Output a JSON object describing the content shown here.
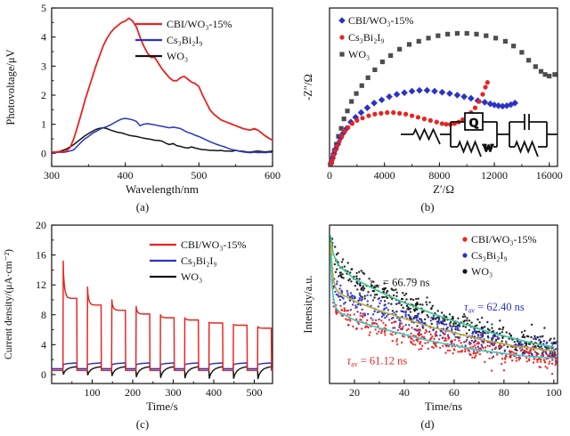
{
  "figure": {
    "background": "#ffffff"
  },
  "chart_data": [
    {
      "id": "a",
      "caption": "(a)",
      "type": "line",
      "xlabel": "Wavelength/nm",
      "ylabel": "Photovoltage/μV",
      "xlim": [
        300,
        600
      ],
      "ylim": [
        -0.45,
        5
      ],
      "xticks": [
        300,
        400,
        500,
        600
      ],
      "xminor": [
        350,
        450,
        550
      ],
      "yticks": [
        0,
        1,
        2,
        3,
        4,
        5
      ],
      "yminor": [
        0.5,
        1.5,
        2.5,
        3.5,
        4.5
      ],
      "legend": [
        {
          "label": "CBI/WO₃-15%",
          "color": "#e8231f"
        },
        {
          "label": "Cs₃Bi₂I₉",
          "color": "#2b33c4"
        },
        {
          "label": "WO₃",
          "color": "#151515"
        }
      ],
      "series": [
        {
          "name": "CBI/WO₃-15%",
          "color": "#e8231f",
          "width": 1.8,
          "x0": 300,
          "dx": 5,
          "y": [
            0.05,
            0.04,
            0.06,
            0.05,
            0.08,
            0.2,
            0.5,
            0.9,
            1.35,
            1.8,
            2.2,
            2.6,
            3.0,
            3.35,
            3.7,
            3.95,
            4.15,
            4.3,
            4.4,
            4.5,
            4.55,
            4.65,
            4.55,
            4.35,
            4.0,
            3.7,
            3.45,
            3.3,
            3.3,
            3.1,
            2.9,
            2.75,
            2.6,
            2.5,
            2.5,
            2.6,
            2.65,
            2.55,
            2.45,
            2.4,
            2.3,
            2.0,
            1.75,
            1.5,
            1.35,
            1.25,
            1.15,
            1.1,
            1.05,
            1.0,
            0.95,
            0.9,
            0.85,
            0.82,
            0.8,
            0.85,
            0.8,
            0.7,
            0.6,
            0.52,
            0.45
          ]
        },
        {
          "name": "Cs₃Bi₂I₉",
          "color": "#2b33c4",
          "width": 1.5,
          "x0": 300,
          "dx": 5,
          "y": [
            0.03,
            0.02,
            0.04,
            0.03,
            0.05,
            0.08,
            0.12,
            0.25,
            0.38,
            0.5,
            0.58,
            0.68,
            0.75,
            0.82,
            0.88,
            0.92,
            0.98,
            1.05,
            1.12,
            1.18,
            1.2,
            1.18,
            1.15,
            1.1,
            0.95,
            1.0,
            1.02,
            1.0,
            0.98,
            0.95,
            0.93,
            0.9,
            0.88,
            0.9,
            0.88,
            0.85,
            0.78,
            0.72,
            0.68,
            0.62,
            0.58,
            0.52,
            0.46,
            0.4,
            0.35,
            0.3,
            0.26,
            0.22,
            0.17,
            0.13,
            0.1,
            0.07,
            0.05,
            0.03,
            0.02,
            0.04,
            0.02,
            0.03,
            0.02,
            0.04,
            0.03
          ]
        },
        {
          "name": "WO₃",
          "color": "#151515",
          "width": 1.5,
          "x0": 300,
          "dx": 5,
          "y": [
            0.02,
            0.04,
            0.06,
            0.1,
            0.15,
            0.22,
            0.3,
            0.4,
            0.5,
            0.6,
            0.68,
            0.75,
            0.82,
            0.86,
            0.88,
            0.85,
            0.8,
            0.76,
            0.72,
            0.7,
            0.66,
            0.62,
            0.6,
            0.58,
            0.55,
            0.52,
            0.5,
            0.48,
            0.45,
            0.44,
            0.42,
            0.35,
            0.3,
            0.34,
            0.26,
            0.24,
            0.2,
            0.18,
            0.22,
            0.18,
            0.15,
            0.13,
            0.12,
            0.1,
            0.1,
            0.09,
            0.1,
            0.08,
            0.08,
            0.07,
            0.1,
            0.08,
            0.07,
            0.05,
            0.04,
            0.06,
            0.08,
            0.06,
            0.05,
            0.06,
            0.08
          ]
        }
      ]
    },
    {
      "id": "b",
      "caption": "(b)",
      "type": "scatter",
      "xlabel": "Z′/Ω",
      "ylabel": "-Z″/Ω",
      "xlim": [
        0,
        16600
      ],
      "ylim": [
        0,
        1
      ],
      "xticks": [
        0,
        4000,
        8000,
        12000,
        16000
      ],
      "xminor": [
        2000,
        6000,
        10000,
        14000
      ],
      "yticks": [],
      "yminor": [],
      "legend": [
        {
          "label": "CBI/WO₃-15%",
          "color": "#2b33c4",
          "marker": "diamond"
        },
        {
          "label": "Cs₃Bi₂I₉",
          "color": "#e8231f",
          "marker": "circle"
        },
        {
          "label": "WO₃",
          "color": "#4d4d4d",
          "marker": "square"
        }
      ],
      "inset": {
        "q_label": "Q",
        "w_label": "W"
      },
      "series": [
        {
          "name": "WO₃",
          "color": "#4d4d4d",
          "marker": "square",
          "x": [
            60,
            100,
            150,
            250,
            350,
            500,
            650,
            850,
            1050,
            1300,
            1600,
            1950,
            2350,
            2800,
            3300,
            3850,
            4450,
            5100,
            5800,
            6500,
            7200,
            7900,
            8600,
            9300,
            10000,
            10700,
            11400,
            12100,
            12800,
            13400,
            14000,
            14500,
            15000,
            15400,
            15700,
            16000,
            16400
          ],
          "y": [
            0.01,
            0.02,
            0.03,
            0.06,
            0.1,
            0.14,
            0.19,
            0.24,
            0.3,
            0.35,
            0.41,
            0.46,
            0.51,
            0.56,
            0.61,
            0.66,
            0.7,
            0.74,
            0.77,
            0.79,
            0.81,
            0.825,
            0.835,
            0.84,
            0.84,
            0.835,
            0.825,
            0.81,
            0.79,
            0.76,
            0.72,
            0.67,
            0.63,
            0.6,
            0.58,
            0.57,
            0.58
          ]
        },
        {
          "name": "CBI/WO₃-15%",
          "color": "#2b33c4",
          "marker": "diamond",
          "x": [
            100,
            200,
            320,
            450,
            600,
            800,
            1000,
            1250,
            1550,
            1900,
            2300,
            2750,
            3250,
            3800,
            4350,
            4900,
            5450,
            6000,
            6550,
            7100,
            7650,
            8200,
            8750,
            9300,
            9800,
            10300,
            10800,
            11300,
            11700,
            12000,
            12300,
            12600,
            12900,
            13200,
            13500
          ],
          "y": [
            0.02,
            0.05,
            0.08,
            0.11,
            0.14,
            0.18,
            0.21,
            0.24,
            0.28,
            0.31,
            0.34,
            0.37,
            0.4,
            0.42,
            0.44,
            0.455,
            0.465,
            0.475,
            0.48,
            0.48,
            0.475,
            0.468,
            0.46,
            0.45,
            0.44,
            0.43,
            0.415,
            0.405,
            0.395,
            0.388,
            0.383,
            0.38,
            0.383,
            0.39,
            0.4
          ]
        },
        {
          "name": "Cs₃Bi₂I₉",
          "color": "#e8231f",
          "marker": "circle",
          "x": [
            100,
            200,
            300,
            420,
            560,
            720,
            900,
            1100,
            1350,
            1650,
            2000,
            2400,
            2850,
            3300,
            3750,
            4200,
            4650,
            5100,
            5550,
            6000,
            6450,
            6900,
            7350,
            7800,
            8200,
            8500,
            8800,
            9100,
            9400,
            9700,
            10000,
            10300,
            10600,
            10900,
            11150,
            11350,
            11500
          ],
          "y": [
            0.02,
            0.04,
            0.07,
            0.1,
            0.13,
            0.16,
            0.19,
            0.22,
            0.245,
            0.27,
            0.29,
            0.305,
            0.32,
            0.33,
            0.335,
            0.34,
            0.34,
            0.335,
            0.33,
            0.32,
            0.31,
            0.3,
            0.29,
            0.28,
            0.27,
            0.266,
            0.265,
            0.27,
            0.28,
            0.295,
            0.315,
            0.34,
            0.37,
            0.41,
            0.455,
            0.5,
            0.53
          ]
        }
      ]
    },
    {
      "id": "c",
      "caption": "(c)",
      "type": "pulses",
      "xlabel": "Time/s",
      "ylabel": "Current density/(μA·cm⁻²)",
      "xlim": [
        0,
        545
      ],
      "ylim": [
        -1.2,
        20
      ],
      "xticks": [
        100,
        200,
        300,
        400,
        500
      ],
      "xminor": [
        50,
        150,
        250,
        350,
        450
      ],
      "yticks": [
        0,
        4,
        8,
        12,
        16,
        20
      ],
      "yminor": [
        2,
        6,
        10,
        14,
        18
      ],
      "legend": [
        {
          "label": "CBI/WO₃-15%",
          "color": "#e8231f"
        },
        {
          "label": "Cs₃Bi₂I₉",
          "color": "#2b33c4"
        },
        {
          "label": "WO₃",
          "color": "#151515"
        }
      ],
      "pulse_timing": {
        "starts": [
          28,
          88,
          148,
          208,
          268,
          328,
          388,
          448,
          508
        ],
        "duration": 34
      },
      "series": [
        {
          "name": "CBI/WO₃-15%",
          "color": "#e8231f",
          "kind": "spike",
          "base": 0.55,
          "peaks": [
            15.2,
            11.7,
            10.0,
            9.1,
            8.0,
            7.6,
            7.0,
            6.7,
            6.4
          ],
          "plateaus": [
            10.2,
            9.3,
            8.6,
            8.1,
            7.6,
            7.3,
            6.9,
            6.6,
            6.2
          ]
        },
        {
          "name": "Cs₃Bi₂I₉",
          "color": "#2b33c4",
          "kind": "step",
          "base": 0.78,
          "on_start": 1.35,
          "on_end": 1.55
        },
        {
          "name": "WO₃",
          "color": "#151515",
          "kind": "rise",
          "base": 0.55,
          "peak": 1.05,
          "dips": [
            0.05,
            -0.05,
            -0.15,
            -0.3,
            -0.4,
            -0.45,
            -0.5,
            -0.5,
            -0.55
          ]
        }
      ]
    },
    {
      "id": "d",
      "caption": "(d)",
      "type": "decay",
      "xlabel": "Time/ns",
      "ylabel": "Intensity/a.u.",
      "xlim": [
        10,
        101.5
      ],
      "ylim": [
        0,
        1
      ],
      "xticks": [
        20,
        40,
        60,
        80,
        100
      ],
      "xminor": [
        30,
        50,
        70,
        90
      ],
      "yticks": [],
      "yminor": [],
      "legend": [
        {
          "label": "CBI/WO₃-15%",
          "color": "#e8231f",
          "marker": "circle"
        },
        {
          "label": "Cs₃Bi₂I₉",
          "color": "#2b33c4",
          "marker": "circle"
        },
        {
          "label": "WO₃",
          "color": "#151515",
          "marker": "circle"
        }
      ],
      "fit_t": [
        10.5,
        11,
        11.5,
        12.5,
        14,
        17,
        20,
        25,
        30,
        35,
        40,
        45,
        50,
        55,
        60,
        65,
        70,
        75,
        80,
        85,
        90,
        95,
        100
      ],
      "series": [
        {
          "name": "CBI/WO₃-15%",
          "color": "#e8231f",
          "fit_color": "#3fc9c9",
          "fit_y": [
            0.8,
            0.62,
            0.54,
            0.48,
            0.45,
            0.425,
            0.4,
            0.375,
            0.35,
            0.33,
            0.31,
            0.29,
            0.27,
            0.255,
            0.24,
            0.225,
            0.21,
            0.2,
            0.19,
            0.18,
            0.17,
            0.165,
            0.16
          ],
          "scatter": {
            "n": 380,
            "sd": 0.032,
            "seed": 13
          }
        },
        {
          "name": "Cs₃Bi₂I₉",
          "color": "#2b33c4",
          "fit_color": "#c0ab35",
          "fit_y": [
            0.88,
            0.74,
            0.66,
            0.6,
            0.57,
            0.545,
            0.52,
            0.49,
            0.46,
            0.435,
            0.41,
            0.385,
            0.36,
            0.34,
            0.32,
            0.3,
            0.28,
            0.265,
            0.25,
            0.235,
            0.225,
            0.215,
            0.205
          ],
          "scatter": {
            "n": 380,
            "sd": 0.035,
            "seed": 11
          }
        },
        {
          "name": "WO₃",
          "color": "#151515",
          "fit_color": "#3cc98f",
          "fit_y": [
            0.93,
            0.86,
            0.82,
            0.78,
            0.74,
            0.7,
            0.66,
            0.62,
            0.58,
            0.545,
            0.51,
            0.48,
            0.45,
            0.42,
            0.395,
            0.37,
            0.345,
            0.32,
            0.3,
            0.28,
            0.26,
            0.245,
            0.23
          ],
          "scatter": {
            "n": 380,
            "sd": 0.04,
            "seed": 7
          }
        }
      ],
      "annotations": [
        {
          "sym": "τ",
          "sub": "av",
          "text": " = 66.79 ns",
          "color": "#151515",
          "x": 26,
          "y": 0.615
        },
        {
          "sym": "τ",
          "sub": "av",
          "text": " = 62.40 ns",
          "color": "#2b33c4",
          "x": 64,
          "y": 0.46
        },
        {
          "sym": "τ",
          "sub": "av",
          "text": " = 61.12 ns",
          "color": "#e8231f",
          "x": 17,
          "y": 0.12
        }
      ]
    }
  ]
}
